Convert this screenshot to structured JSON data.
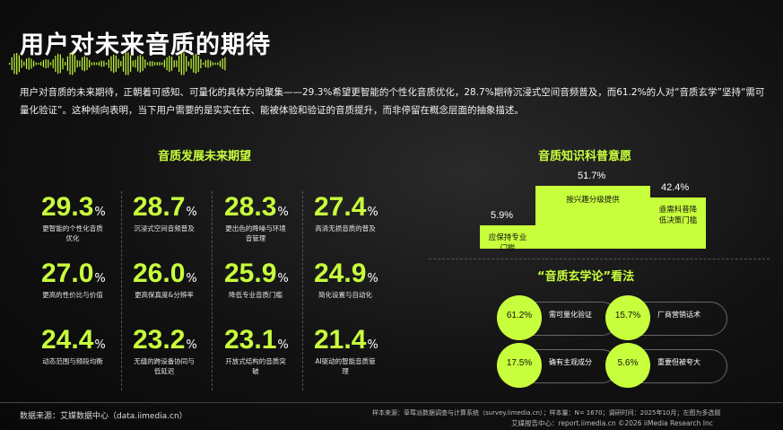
{
  "title": "用户对未来音质的期待",
  "description": "用户对音质的未来期待，正朝着可感知、可量化的具体方向聚集——29.3%希望更智能的个性化音质优化，28.7%期待沉浸式空间音频普及，而61.2%的人对“音质玄学”坚持“需可量化验证”。这种倾向表明，当下用户需要的是实实在在、能被体验和验证的音质提升，而非停留在概念层面的抽象描述。",
  "left_section_title": "音质发展未来期望",
  "right_top_title": "音质知识科普意愿",
  "right_bottom_title": "“音质玄学论”看法",
  "pct_sign": "%",
  "stats": [
    {
      "value": "29.3",
      "label": "更智能的个性化音质优化"
    },
    {
      "value": "28.7",
      "label": "沉浸式空间音频普及"
    },
    {
      "value": "28.3",
      "label": "更出色的降噪与环境音管理"
    },
    {
      "value": "27.4",
      "label": "高清无损音质的普及"
    },
    {
      "value": "27.0",
      "label": "更高的性价比与价值"
    },
    {
      "value": "26.0",
      "label": "更高保真度&分辨率"
    },
    {
      "value": "25.9",
      "label": "降低专业音质门槛"
    },
    {
      "value": "24.9",
      "label": "简化设置与自动化"
    },
    {
      "value": "24.4",
      "label": "动态范围与频段均衡"
    },
    {
      "value": "23.2",
      "label": "无缝的跨设备协同与低延迟"
    },
    {
      "value": "23.1",
      "label": "开放式结构的音质突破"
    },
    {
      "value": "21.4",
      "label": "AI驱动的智能音质管理"
    }
  ],
  "chart_data": [
    {
      "type": "bar",
      "title": "音质知识科普意愿",
      "categories": [
        "应保持专业门槛",
        "按兴趣分级提供",
        "亟需科普降低决策门槛"
      ],
      "values": [
        5.9,
        51.7,
        42.4
      ],
      "value_labels": [
        "5.9%",
        "51.7%",
        "42.4%"
      ],
      "unit": "%"
    },
    {
      "type": "table",
      "title": "“音质玄学论”看法",
      "categories": [
        "需可量化验证",
        "厂商营销话术",
        "确有主观成分",
        "重要但被夸大"
      ],
      "values": [
        61.2,
        15.7,
        17.5,
        5.6
      ],
      "value_labels": [
        "61.2%",
        "15.7%",
        "17.5%",
        "5.6%"
      ],
      "unit": "%"
    }
  ],
  "steps": [
    {
      "pct": "5.9%",
      "label": "应保持专业门槛"
    },
    {
      "pct": "51.7%",
      "label": "按兴趣分级提供"
    },
    {
      "pct": "42.4%",
      "label": "亟需科普降低决策门槛"
    }
  ],
  "views": [
    {
      "pct": "61.2%",
      "label": "需可量化验证"
    },
    {
      "pct": "15.7%",
      "label": "厂商营销话术"
    },
    {
      "pct": "17.5%",
      "label": "确有主观成分"
    },
    {
      "pct": "5.6%",
      "label": "重要但被夸大"
    }
  ],
  "footer": {
    "source": "数据来源：艾媒数据中心（data.iimedia.cn）",
    "sample": "样本来源：草莓派数据调查与计算系统（survey.iimedia.cn）；样本量：N= 1670；调研时间：2025年10月；左图为多选题",
    "copyright": "艾媒报告中心：report.iimedia.cn  ©2026  iiMedia Research  Inc"
  },
  "colors": {
    "accent": "#c8ff3c",
    "background": "#121212"
  }
}
